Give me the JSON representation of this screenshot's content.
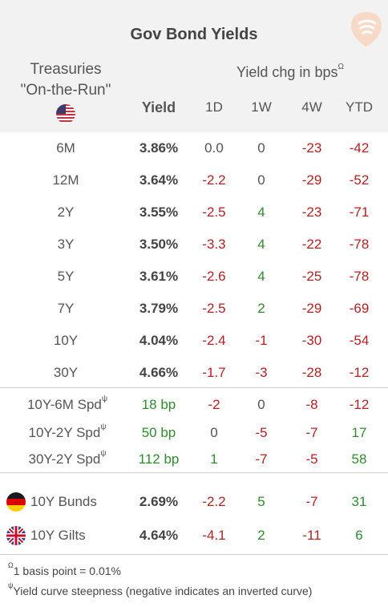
{
  "title": "Gov Bond Yields",
  "treasuries": {
    "line1": "Treasuries",
    "line2": "\"On-the-Run\""
  },
  "yield_chg_header": "Yield chg in bps",
  "yield_chg_sup": "Ω",
  "columns": {
    "yield": "Yield",
    "d1": "1D",
    "w1": "1W",
    "w4": "4W",
    "ytd": "YTD"
  },
  "rows": [
    {
      "label": "6M",
      "yield": "3.86%",
      "d1": "0.0",
      "w1": "0",
      "w4": "-23",
      "ytd": "-42"
    },
    {
      "label": "12M",
      "yield": "3.64%",
      "d1": "-2.2",
      "w1": "0",
      "w4": "-29",
      "ytd": "-52"
    },
    {
      "label": "2Y",
      "yield": "3.55%",
      "d1": "-2.5",
      "w1": "4",
      "w4": "-23",
      "ytd": "-71"
    },
    {
      "label": "3Y",
      "yield": "3.50%",
      "d1": "-3.3",
      "w1": "4",
      "w4": "-22",
      "ytd": "-78"
    },
    {
      "label": "5Y",
      "yield": "3.61%",
      "d1": "-2.6",
      "w1": "4",
      "w4": "-25",
      "ytd": "-78"
    },
    {
      "label": "7Y",
      "yield": "3.79%",
      "d1": "-2.5",
      "w1": "2",
      "w4": "-29",
      "ytd": "-69"
    },
    {
      "label": "10Y",
      "yield": "4.04%",
      "d1": "-2.4",
      "w1": "-1",
      "w4": "-30",
      "ytd": "-54"
    },
    {
      "label": "30Y",
      "yield": "4.66%",
      "d1": "-1.7",
      "w1": "-3",
      "w4": "-28",
      "ytd": "-12"
    }
  ],
  "spreads": [
    {
      "label": "10Y-6M Spd",
      "sup": "ψ",
      "value": "18 bp",
      "d1": "-2",
      "w1": "0",
      "w4": "-8",
      "ytd": "-12"
    },
    {
      "label": "10Y-2Y Spd",
      "sup": "ψ",
      "value": "50 bp",
      "d1": "0",
      "w1": "-5",
      "w4": "-7",
      "ytd": "17"
    },
    {
      "label": "30Y-2Y Spd",
      "sup": "ψ",
      "value": "112 bp",
      "d1": "1",
      "w1": "-7",
      "w4": "-5",
      "ytd": "58"
    }
  ],
  "intl": [
    {
      "label": "10Y Bunds",
      "yield": "2.69%",
      "d1": "-2.2",
      "w1": "5",
      "w4": "-7",
      "ytd": "31"
    },
    {
      "label": "10Y Gilts",
      "yield": "4.64%",
      "d1": "-4.1",
      "w1": "2",
      "w4": "-11",
      "ytd": "6"
    }
  ],
  "notes": [
    {
      "sup": "Ω",
      "text": "1 basis point = 0.01%"
    },
    {
      "sup": "ψ",
      "text": "Yield curve steepness (negative indicates an inverted curve)"
    }
  ],
  "colors": {
    "negative": "#b22222",
    "positive": "#2e8b2e",
    "header_bg": "#f2f2f2"
  }
}
